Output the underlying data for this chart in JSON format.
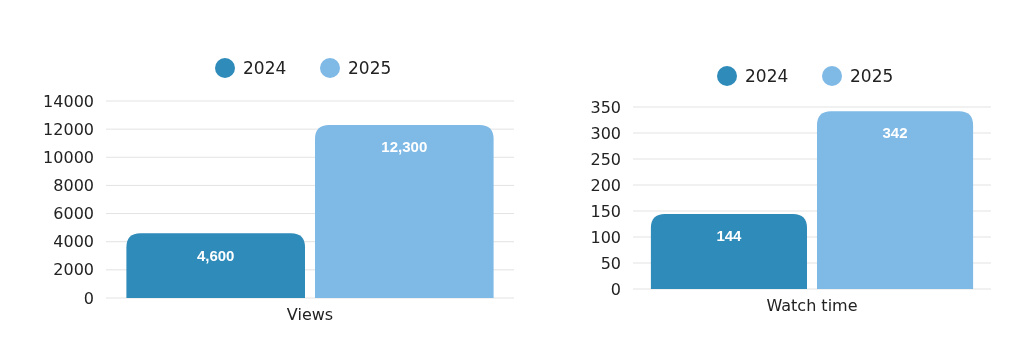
{
  "chart_data": [
    {
      "type": "bar",
      "categories": [
        "Views"
      ],
      "series": [
        {
          "name": "2024",
          "color": "#2e8bba",
          "values": [
            4600
          ],
          "value_labels": [
            "4,600"
          ]
        },
        {
          "name": "2025",
          "color": "#7fb9e6",
          "values": [
            12300
          ],
          "value_labels": [
            "12,300"
          ]
        }
      ],
      "ylim": [
        0,
        14000
      ],
      "yticks": [
        0,
        2000,
        4000,
        6000,
        8000,
        10000,
        12000,
        14000
      ],
      "grid": "y",
      "legend": "top"
    },
    {
      "type": "bar",
      "categories": [
        "Watch time"
      ],
      "series": [
        {
          "name": "2024",
          "color": "#2e8bba",
          "values": [
            144
          ],
          "value_labels": [
            "144"
          ]
        },
        {
          "name": "2025",
          "color": "#7fb9e6",
          "values": [
            342
          ],
          "value_labels": [
            "342"
          ]
        }
      ],
      "ylim": [
        0,
        350
      ],
      "yticks": [
        0,
        50,
        100,
        150,
        200,
        250,
        300,
        350
      ],
      "grid": "y",
      "legend": "top"
    }
  ]
}
